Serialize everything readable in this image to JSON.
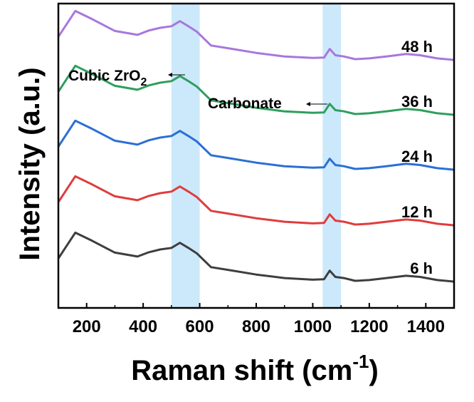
{
  "chart_data": {
    "type": "line",
    "xlabel": "Raman shift (cm",
    "xlabel_sup": "-1",
    "xlabel_end": ")",
    "ylabel": "Intensity (a.u.)",
    "xlim": [
      100,
      1500
    ],
    "xticks": [
      200,
      400,
      600,
      800,
      1000,
      1200,
      1400
    ],
    "grid": false,
    "legend": "none",
    "highlight_bands": [
      {
        "name": "cubic-zro2-band",
        "x": [
          500,
          600
        ],
        "color": "#cce9fb"
      },
      {
        "name": "carbonate-band",
        "x": [
          1035,
          1100
        ],
        "color": "#cce9fb"
      }
    ],
    "annotations": [
      {
        "name": "cubic-zro2-annotation",
        "text": "Cubic ZrO",
        "sub": "2",
        "x": 530
      },
      {
        "name": "carbonate-annotation",
        "text": "Carbonate",
        "x": 1060
      }
    ],
    "series": [
      {
        "name": "6 h",
        "color": "#3e3e3e",
        "points": [
          [
            100,
            0.17
          ],
          [
            160,
            0.83
          ],
          [
            220,
            0.62
          ],
          [
            300,
            0.32
          ],
          [
            380,
            0.22
          ],
          [
            420,
            0.33
          ],
          [
            460,
            0.4
          ],
          [
            500,
            0.44
          ],
          [
            530,
            0.57
          ],
          [
            560,
            0.44
          ],
          [
            590,
            0.3
          ],
          [
            640,
            -0.05
          ],
          [
            700,
            -0.12
          ],
          [
            800,
            -0.24
          ],
          [
            900,
            -0.33
          ],
          [
            1000,
            -0.37
          ],
          [
            1040,
            -0.36
          ],
          [
            1060,
            -0.14
          ],
          [
            1080,
            -0.3
          ],
          [
            1110,
            -0.33
          ],
          [
            1150,
            -0.4
          ],
          [
            1200,
            -0.38
          ],
          [
            1260,
            -0.33
          ],
          [
            1330,
            -0.27
          ],
          [
            1380,
            -0.3
          ],
          [
            1440,
            -0.38
          ],
          [
            1500,
            -0.42
          ]
        ]
      },
      {
        "name": "12 h",
        "color": "#e03c3c",
        "points": [
          [
            100,
            0.17
          ],
          [
            160,
            0.83
          ],
          [
            220,
            0.62
          ],
          [
            300,
            0.32
          ],
          [
            380,
            0.22
          ],
          [
            420,
            0.33
          ],
          [
            460,
            0.4
          ],
          [
            500,
            0.44
          ],
          [
            530,
            0.57
          ],
          [
            560,
            0.44
          ],
          [
            590,
            0.3
          ],
          [
            640,
            -0.05
          ],
          [
            700,
            -0.12
          ],
          [
            800,
            -0.24
          ],
          [
            900,
            -0.33
          ],
          [
            1000,
            -0.37
          ],
          [
            1040,
            -0.36
          ],
          [
            1060,
            -0.14
          ],
          [
            1080,
            -0.3
          ],
          [
            1110,
            -0.33
          ],
          [
            1150,
            -0.4
          ],
          [
            1200,
            -0.38
          ],
          [
            1260,
            -0.33
          ],
          [
            1330,
            -0.27
          ],
          [
            1380,
            -0.3
          ],
          [
            1440,
            -0.38
          ],
          [
            1500,
            -0.42
          ]
        ]
      },
      {
        "name": "24 h",
        "color": "#2b6fd6",
        "points": [
          [
            100,
            0.17
          ],
          [
            160,
            0.83
          ],
          [
            220,
            0.62
          ],
          [
            300,
            0.32
          ],
          [
            380,
            0.22
          ],
          [
            420,
            0.33
          ],
          [
            460,
            0.4
          ],
          [
            500,
            0.44
          ],
          [
            530,
            0.57
          ],
          [
            560,
            0.44
          ],
          [
            590,
            0.3
          ],
          [
            640,
            -0.05
          ],
          [
            700,
            -0.12
          ],
          [
            800,
            -0.24
          ],
          [
            900,
            -0.33
          ],
          [
            1000,
            -0.37
          ],
          [
            1040,
            -0.36
          ],
          [
            1060,
            -0.14
          ],
          [
            1080,
            -0.3
          ],
          [
            1110,
            -0.33
          ],
          [
            1150,
            -0.4
          ],
          [
            1200,
            -0.38
          ],
          [
            1260,
            -0.33
          ],
          [
            1330,
            -0.27
          ],
          [
            1380,
            -0.3
          ],
          [
            1440,
            -0.38
          ],
          [
            1500,
            -0.42
          ]
        ]
      },
      {
        "name": "36 h",
        "color": "#2f9e5e",
        "points": [
          [
            100,
            0.17
          ],
          [
            160,
            0.83
          ],
          [
            220,
            0.62
          ],
          [
            300,
            0.32
          ],
          [
            380,
            0.22
          ],
          [
            420,
            0.33
          ],
          [
            460,
            0.4
          ],
          [
            500,
            0.44
          ],
          [
            530,
            0.57
          ],
          [
            560,
            0.44
          ],
          [
            590,
            0.3
          ],
          [
            640,
            -0.05
          ],
          [
            700,
            -0.12
          ],
          [
            800,
            -0.24
          ],
          [
            900,
            -0.33
          ],
          [
            1000,
            -0.37
          ],
          [
            1040,
            -0.36
          ],
          [
            1060,
            -0.14
          ],
          [
            1080,
            -0.3
          ],
          [
            1110,
            -0.33
          ],
          [
            1150,
            -0.4
          ],
          [
            1200,
            -0.38
          ],
          [
            1260,
            -0.33
          ],
          [
            1330,
            -0.27
          ],
          [
            1380,
            -0.3
          ],
          [
            1440,
            -0.38
          ],
          [
            1500,
            -0.42
          ]
        ]
      },
      {
        "name": "48 h",
        "color": "#a877dd",
        "points": [
          [
            100,
            0.17
          ],
          [
            160,
            0.83
          ],
          [
            220,
            0.62
          ],
          [
            300,
            0.32
          ],
          [
            380,
            0.22
          ],
          [
            420,
            0.33
          ],
          [
            460,
            0.4
          ],
          [
            500,
            0.44
          ],
          [
            530,
            0.57
          ],
          [
            560,
            0.44
          ],
          [
            590,
            0.3
          ],
          [
            640,
            -0.05
          ],
          [
            700,
            -0.12
          ],
          [
            800,
            -0.24
          ],
          [
            900,
            -0.33
          ],
          [
            1000,
            -0.37
          ],
          [
            1040,
            -0.36
          ],
          [
            1060,
            -0.14
          ],
          [
            1080,
            -0.3
          ],
          [
            1110,
            -0.33
          ],
          [
            1150,
            -0.4
          ],
          [
            1200,
            -0.38
          ],
          [
            1260,
            -0.33
          ],
          [
            1330,
            -0.27
          ],
          [
            1380,
            -0.3
          ],
          [
            1440,
            -0.38
          ],
          [
            1500,
            -0.42
          ]
        ]
      }
    ]
  }
}
